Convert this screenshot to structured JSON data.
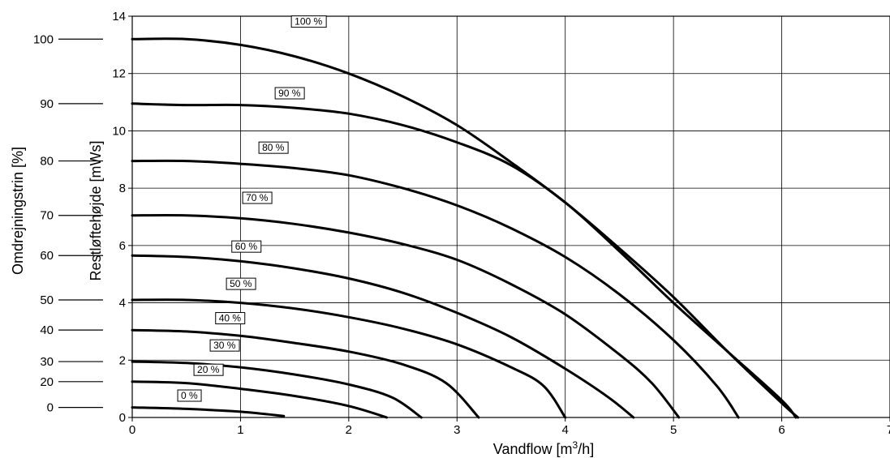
{
  "chart_data": {
    "type": "line",
    "xlabel_main": "Vandflow [m",
    "xlabel_sup": "3",
    "xlabel_tail": "/h]",
    "ylabel": "Restløftehøjde [mWs]",
    "y2label": "Omdrejningstrin [%]",
    "xlim": [
      0,
      7
    ],
    "ylim": [
      0,
      14
    ],
    "grid": true,
    "x_ticks": [
      "0",
      "1",
      "2",
      "3",
      "4",
      "5",
      "6",
      "7"
    ],
    "y_ticks": [
      "0",
      "2",
      "4",
      "6",
      "8",
      "10",
      "12",
      "14"
    ],
    "speed_scale": [
      {
        "label": "100",
        "y": 13.2
      },
      {
        "label": "90",
        "y": 10.95
      },
      {
        "label": "80",
        "y": 8.95
      },
      {
        "label": "70",
        "y": 7.05
      },
      {
        "label": "60",
        "y": 5.65
      },
      {
        "label": "50",
        "y": 4.1
      },
      {
        "label": "40",
        "y": 3.05
      },
      {
        "label": "30",
        "y": 1.95
      },
      {
        "label": "20",
        "y": 1.25
      },
      {
        "label": "0",
        "y": 0.35
      }
    ],
    "series": [
      {
        "name": "100 %",
        "label_at": [
          1.5,
          13.7
        ],
        "points": [
          [
            0,
            13.2
          ],
          [
            0.5,
            13.2
          ],
          [
            1,
            13.0
          ],
          [
            1.5,
            12.6
          ],
          [
            2,
            12.0
          ],
          [
            2.5,
            11.2
          ],
          [
            3,
            10.2
          ],
          [
            3.5,
            8.9
          ],
          [
            4,
            7.5
          ],
          [
            4.5,
            5.9
          ],
          [
            5,
            4.2
          ],
          [
            5.5,
            2.3
          ],
          [
            6,
            0.5
          ],
          [
            6.15,
            0
          ]
        ]
      },
      {
        "name": "90 %",
        "label_at": [
          1.35,
          11.2
        ],
        "points": [
          [
            0,
            10.95
          ],
          [
            0.5,
            10.9
          ],
          [
            1,
            10.9
          ],
          [
            1.5,
            10.8
          ],
          [
            2,
            10.6
          ],
          [
            2.5,
            10.2
          ],
          [
            3,
            9.6
          ],
          [
            3.5,
            8.8
          ],
          [
            4,
            7.5
          ],
          [
            4.5,
            5.8
          ],
          [
            5,
            4.0
          ],
          [
            5.5,
            2.3
          ],
          [
            6,
            0.6
          ],
          [
            6.13,
            0
          ]
        ]
      },
      {
        "name": "80 %",
        "label_at": [
          1.2,
          9.3
        ],
        "points": [
          [
            0,
            8.95
          ],
          [
            0.5,
            8.95
          ],
          [
            1,
            8.85
          ],
          [
            1.5,
            8.7
          ],
          [
            2,
            8.45
          ],
          [
            2.5,
            8.0
          ],
          [
            3,
            7.4
          ],
          [
            3.5,
            6.6
          ],
          [
            4,
            5.6
          ],
          [
            4.5,
            4.3
          ],
          [
            5,
            2.7
          ],
          [
            5.4,
            1.1
          ],
          [
            5.6,
            0
          ]
        ]
      },
      {
        "name": "70 %",
        "label_at": [
          1.05,
          7.55
        ],
        "points": [
          [
            0,
            7.05
          ],
          [
            0.5,
            7.05
          ],
          [
            1,
            6.95
          ],
          [
            1.5,
            6.75
          ],
          [
            2,
            6.45
          ],
          [
            2.5,
            6.05
          ],
          [
            3,
            5.5
          ],
          [
            3.5,
            4.65
          ],
          [
            4,
            3.6
          ],
          [
            4.5,
            2.2
          ],
          [
            4.8,
            1.2
          ],
          [
            5.05,
            0
          ]
        ]
      },
      {
        "name": "60 %",
        "label_at": [
          0.95,
          5.85
        ],
        "points": [
          [
            0,
            5.65
          ],
          [
            0.5,
            5.6
          ],
          [
            1,
            5.45
          ],
          [
            1.5,
            5.2
          ],
          [
            2,
            4.85
          ],
          [
            2.5,
            4.35
          ],
          [
            3,
            3.65
          ],
          [
            3.5,
            2.8
          ],
          [
            4,
            1.7
          ],
          [
            4.4,
            0.7
          ],
          [
            4.63,
            0
          ]
        ]
      },
      {
        "name": "50 %",
        "label_at": [
          0.9,
          4.55
        ],
        "points": [
          [
            0,
            4.1
          ],
          [
            0.5,
            4.1
          ],
          [
            1,
            4.0
          ],
          [
            1.5,
            3.8
          ],
          [
            2,
            3.5
          ],
          [
            2.5,
            3.1
          ],
          [
            3,
            2.55
          ],
          [
            3.5,
            1.75
          ],
          [
            3.8,
            1.1
          ],
          [
            4.0,
            0
          ]
        ]
      },
      {
        "name": "40 %",
        "label_at": [
          0.8,
          3.35
        ],
        "points": [
          [
            0,
            3.05
          ],
          [
            0.5,
            3.0
          ],
          [
            1,
            2.85
          ],
          [
            1.5,
            2.6
          ],
          [
            2,
            2.3
          ],
          [
            2.5,
            1.85
          ],
          [
            2.9,
            1.2
          ],
          [
            3.2,
            0
          ]
        ]
      },
      {
        "name": "30 %",
        "label_at": [
          0.75,
          2.4
        ],
        "points": [
          [
            0,
            1.95
          ],
          [
            0.5,
            1.9
          ],
          [
            1,
            1.75
          ],
          [
            1.5,
            1.5
          ],
          [
            2,
            1.15
          ],
          [
            2.4,
            0.7
          ],
          [
            2.67,
            0
          ]
        ]
      },
      {
        "name": "20 %",
        "label_at": [
          0.6,
          1.55
        ],
        "points": [
          [
            0,
            1.25
          ],
          [
            0.5,
            1.2
          ],
          [
            1,
            1.0
          ],
          [
            1.5,
            0.75
          ],
          [
            2,
            0.4
          ],
          [
            2.35,
            0
          ]
        ]
      },
      {
        "name": "0 %",
        "label_at": [
          0.45,
          0.65
        ],
        "points": [
          [
            0,
            0.35
          ],
          [
            0.5,
            0.3
          ],
          [
            1,
            0.2
          ],
          [
            1.4,
            0.05
          ]
        ]
      }
    ]
  },
  "colors": {
    "line": "#000000",
    "grid": "#000000",
    "background": "#ffffff"
  }
}
